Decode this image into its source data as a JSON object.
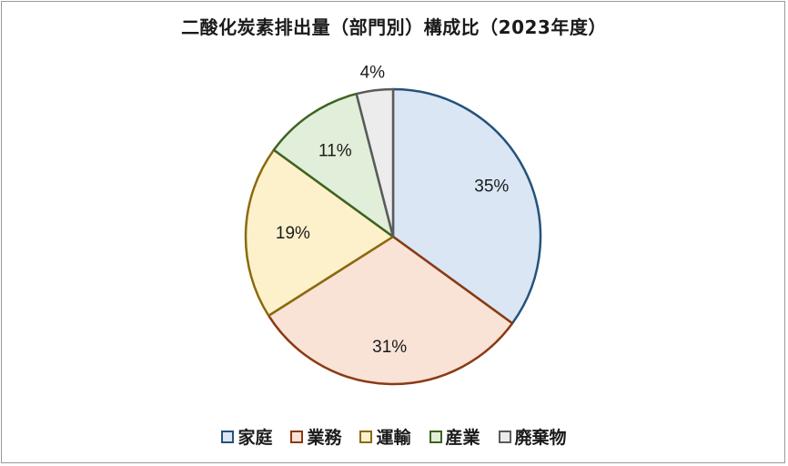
{
  "chart_data": {
    "type": "pie",
    "title": "二酸化炭素排出量（部門別）構成比（2023年度）",
    "categories": [
      "家庭",
      "業務",
      "運輸",
      "産業",
      "廃棄物"
    ],
    "values": [
      35,
      31,
      19,
      11,
      4
    ],
    "labels": [
      "35%",
      "31%",
      "19%",
      "11%",
      "4%"
    ],
    "fill_colors": [
      "#dae6f4",
      "#f9e2d6",
      "#fdf1cc",
      "#e1eed9",
      "#ececec"
    ],
    "edge_colors": [
      "#24527a",
      "#8a3a12",
      "#8a6a0c",
      "#3e6320",
      "#5a5a5a"
    ],
    "legend_position": "bottom"
  }
}
